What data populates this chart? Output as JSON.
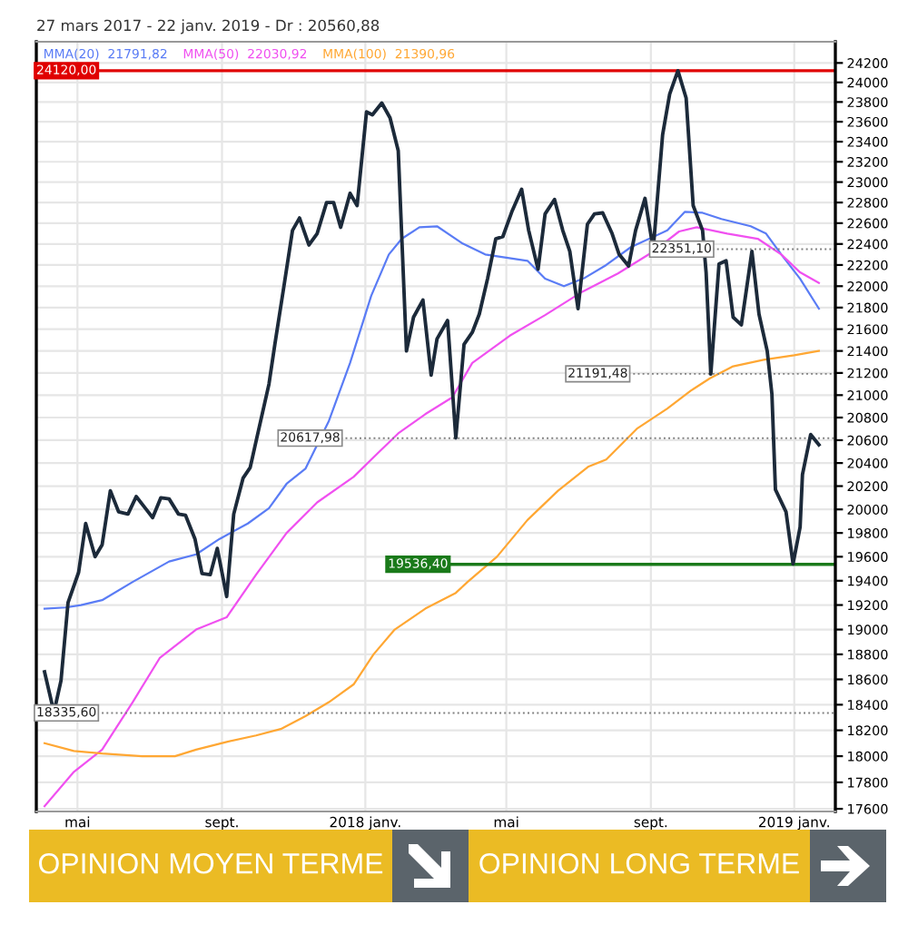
{
  "chart_data": {
    "type": "line",
    "title": "27 mars 2017 - 22 janv. 2019 - Dr : 20560,88",
    "log": true,
    "grid": true,
    "legend": "top left",
    "xlim": [
      "2017-03-27",
      "2019-02-05"
    ],
    "ylim": [
      17580,
      24420
    ],
    "xticks": [
      {
        "value": "2017-05-01",
        "label": "mai"
      },
      {
        "value": "2017-09-01",
        "label": "sept."
      },
      {
        "value": "2018-01-01",
        "label": "2018 janv."
      },
      {
        "value": "2018-05-01",
        "label": "mai"
      },
      {
        "value": "2018-09-01",
        "label": "sept."
      },
      {
        "value": "2019-01-01",
        "label": "2019 janv."
      }
    ],
    "yticks": [
      17600,
      17800,
      18000,
      18200,
      18400,
      18600,
      18800,
      19000,
      19200,
      19400,
      19600,
      19800,
      20000,
      20200,
      20400,
      20600,
      20800,
      21000,
      21200,
      21400,
      21600,
      21800,
      22000,
      22200,
      22400,
      22600,
      22800,
      23000,
      23200,
      23400,
      23600,
      23800,
      24000,
      24200
    ],
    "series": [
      {
        "color": "#1c2a3a",
        "x": [
          "2017-04-03",
          "2017-04-11",
          "2017-04-17",
          "2017-04-23",
          "2017-05-02",
          "2017-05-08",
          "2017-05-16",
          "2017-05-22",
          "2017-05-29",
          "2017-06-05",
          "2017-06-13",
          "2017-06-20",
          "2017-06-27",
          "2017-07-04",
          "2017-07-11",
          "2017-07-18",
          "2017-07-26",
          "2017-08-01",
          "2017-08-09",
          "2017-08-15",
          "2017-08-22",
          "2017-08-28",
          "2017-09-05",
          "2017-09-11",
          "2017-09-19",
          "2017-09-25",
          "2017-09-30",
          "2017-10-11",
          "2017-10-16",
          "2017-10-24",
          "2017-10-31",
          "2017-11-06",
          "2017-11-14",
          "2017-11-21",
          "2017-11-29",
          "2017-12-05",
          "2017-12-11",
          "2017-12-19",
          "2017-12-25",
          "2018-01-02",
          "2018-01-07",
          "2018-01-15",
          "2018-01-22",
          "2018-01-29",
          "2018-02-05",
          "2018-02-11",
          "2018-02-19",
          "2018-02-26",
          "2018-03-03",
          "2018-03-12",
          "2018-03-19",
          "2018-03-26",
          "2018-04-02",
          "2018-04-08",
          "2018-04-15",
          "2018-04-22",
          "2018-04-28",
          "2018-05-06",
          "2018-05-14",
          "2018-05-20",
          "2018-05-28",
          "2018-06-03",
          "2018-06-11",
          "2018-06-18",
          "2018-06-24",
          "2018-07-01",
          "2018-07-09",
          "2018-07-15",
          "2018-07-22",
          "2018-07-30",
          "2018-08-05",
          "2018-08-13",
          "2018-08-19",
          "2018-08-27",
          "2018-09-03",
          "2018-09-11",
          "2018-09-17",
          "2018-09-24",
          "2018-10-01",
          "2018-10-07",
          "2018-10-15",
          "2018-10-18",
          "2018-10-22",
          "2018-10-29",
          "2018-11-04",
          "2018-11-10",
          "2018-11-17",
          "2018-11-26",
          "2018-12-02",
          "2018-12-09",
          "2018-12-13",
          "2018-12-16",
          "2018-12-25",
          "2018-12-31",
          "2019-01-06",
          "2019-01-08",
          "2019-01-15",
          "2019-01-22"
        ],
        "values": [
          18660,
          18340,
          18590,
          19220,
          19470,
          19880,
          19600,
          19700,
          20160,
          19980,
          19960,
          20110,
          20020,
          19930,
          20100,
          20090,
          19960,
          19950,
          19750,
          19460,
          19450,
          19670,
          19270,
          19960,
          20270,
          20360,
          20590,
          21100,
          21460,
          22020,
          22530,
          22650,
          22390,
          22500,
          22800,
          22800,
          22560,
          22890,
          22770,
          23700,
          23670,
          23790,
          23640,
          23310,
          21400,
          21710,
          21870,
          21180,
          21510,
          21680,
          20620,
          21460,
          21570,
          21740,
          22070,
          22450,
          22470,
          22720,
          22930,
          22530,
          22160,
          22690,
          22830,
          22530,
          22330,
          21790,
          22590,
          22690,
          22700,
          22500,
          22300,
          22190,
          22530,
          22840,
          22350,
          23470,
          23880,
          24120,
          23840,
          22770,
          22530,
          22130,
          21190,
          22210,
          22240,
          21710,
          21640,
          22330,
          21740,
          21400,
          21010,
          20170,
          19980,
          19540,
          19850,
          20300,
          20650,
          20560
        ]
      },
      {
        "name": "MMA(20)  21791,82",
        "color": "#5a7cf5",
        "x": [
          "2017-04-03",
          "2017-04-21",
          "2017-05-04",
          "2017-05-22",
          "2017-06-17",
          "2017-07-18",
          "2017-08-10",
          "2017-08-30",
          "2017-09-23",
          "2017-10-11",
          "2017-10-26",
          "2017-11-11",
          "2017-12-01",
          "2017-12-19",
          "2018-01-06",
          "2018-01-21",
          "2018-02-01",
          "2018-02-16",
          "2018-03-03",
          "2018-03-24",
          "2018-04-13",
          "2018-05-19",
          "2018-06-03",
          "2018-06-19",
          "2018-07-07",
          "2018-07-25",
          "2018-08-15",
          "2018-09-15",
          "2018-09-30",
          "2018-10-15",
          "2018-10-31",
          "2018-11-25",
          "2018-12-08",
          "2018-12-21",
          "2019-01-06",
          "2019-01-22"
        ],
        "values": [
          19170,
          19180,
          19200,
          19240,
          19390,
          19560,
          19620,
          19750,
          19880,
          20010,
          20220,
          20350,
          20770,
          21290,
          21910,
          22300,
          22450,
          22560,
          22570,
          22410,
          22300,
          22240,
          22070,
          22000,
          22080,
          22200,
          22370,
          22530,
          22710,
          22700,
          22640,
          22570,
          22500,
          22300,
          22070,
          21790
        ]
      },
      {
        "name": "MMA(50)  22030,92",
        "color": "#f050f0",
        "x": [
          "2017-04-03",
          "2017-04-28",
          "2017-05-22",
          "2017-06-17",
          "2017-07-10",
          "2017-08-10",
          "2017-09-05",
          "2017-09-30",
          "2017-10-26",
          "2017-11-21",
          "2017-12-22",
          "2018-01-11",
          "2018-01-29",
          "2018-02-21",
          "2018-03-16",
          "2018-04-02",
          "2018-05-04",
          "2018-06-03",
          "2018-07-05",
          "2018-08-04",
          "2018-09-02",
          "2018-09-25",
          "2018-10-10",
          "2018-11-05",
          "2018-12-01",
          "2018-12-21",
          "2019-01-06",
          "2019-01-22"
        ],
        "values": [
          17620,
          17880,
          18050,
          18420,
          18770,
          19000,
          19100,
          19450,
          19800,
          20060,
          20280,
          20480,
          20660,
          20830,
          20980,
          21290,
          21540,
          21730,
          21950,
          22120,
          22320,
          22520,
          22560,
          22500,
          22450,
          22300,
          22130,
          22030
        ]
      },
      {
        "name": "MMA(100)  21390,96",
        "color": "#ffa733",
        "x": [
          "2017-04-03",
          "2017-04-28",
          "2017-05-22",
          "2017-06-25",
          "2017-07-23",
          "2017-08-10",
          "2017-09-05",
          "2017-09-30",
          "2017-10-21",
          "2017-11-11",
          "2017-12-01",
          "2017-12-22",
          "2018-01-08",
          "2018-01-26",
          "2018-02-21",
          "2018-03-19",
          "2018-03-29",
          "2018-04-23",
          "2018-05-19",
          "2018-06-14",
          "2018-07-10",
          "2018-07-25",
          "2018-08-20",
          "2018-09-15",
          "2018-10-05",
          "2018-10-21",
          "2018-11-10",
          "2018-12-06",
          "2019-01-01",
          "2019-01-22"
        ],
        "values": [
          18100,
          18040,
          18020,
          18000,
          18000,
          18050,
          18110,
          18160,
          18210,
          18310,
          18420,
          18560,
          18800,
          19000,
          19170,
          19300,
          19390,
          19600,
          19910,
          20160,
          20370,
          20430,
          20700,
          20880,
          21040,
          21150,
          21260,
          21320,
          21360,
          21400
        ]
      }
    ],
    "ref_lines": [
      {
        "axis": "y",
        "value": 24120,
        "label": "24120,00",
        "color": "#e00000",
        "line_style": "solid"
      },
      {
        "axis": "y",
        "value": 20617.98,
        "label": "20617,98",
        "color": "#808080",
        "line_style": "dotted"
      },
      {
        "axis": "y",
        "value": 22351.1,
        "label": "22351,10",
        "color": "#808080",
        "line_style": "dotted"
      },
      {
        "axis": "y",
        "value": 21191.48,
        "label": "21191,48",
        "color": "#808080",
        "line_style": "dotted"
      },
      {
        "axis": "y",
        "value": 19536.4,
        "label": "19536,40",
        "color": "#1a7a1a",
        "line_style": "solid"
      },
      {
        "axis": "y",
        "value": 18335.6,
        "label": "18335,60",
        "color": "#808080",
        "line_style": "dotted"
      }
    ],
    "annotations": [
      "OPINION MOYEN TERME",
      "OPINION LONG TERME"
    ]
  }
}
